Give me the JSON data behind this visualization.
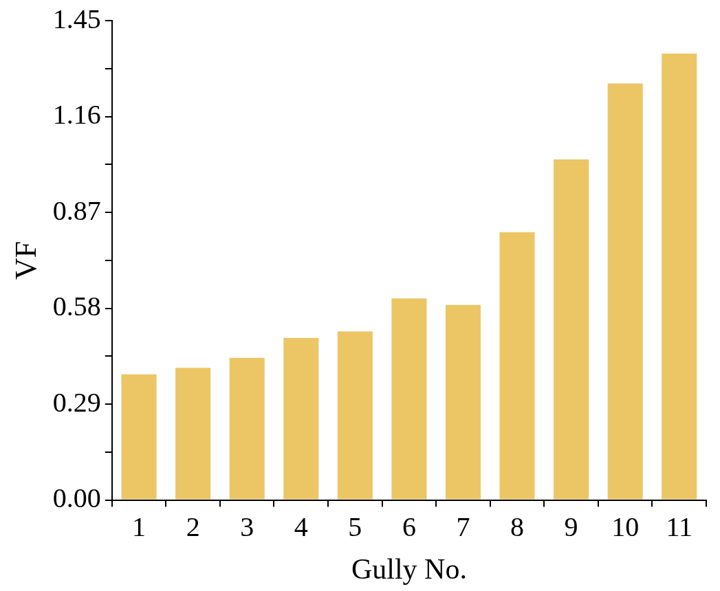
{
  "chart_data": {
    "type": "bar",
    "xlabel": "Gully No.",
    "ylabel": "VF",
    "categories": [
      "1",
      "2",
      "3",
      "4",
      "5",
      "6",
      "7",
      "8",
      "9",
      "10",
      "11"
    ],
    "values": [
      0.38,
      0.4,
      0.43,
      0.49,
      0.51,
      0.61,
      0.59,
      0.81,
      1.03,
      1.26,
      1.35
    ],
    "color": "#ecc565",
    "ylim": [
      0,
      1.45
    ],
    "yticks": [
      {
        "value": 0,
        "label": "0.00"
      },
      {
        "value": 0.145,
        "label": null
      },
      {
        "value": 0.29,
        "label": "0.29"
      },
      {
        "value": 0.435,
        "label": null
      },
      {
        "value": 0.58,
        "label": "0.58"
      },
      {
        "value": 0.725,
        "label": null
      },
      {
        "value": 0.87,
        "label": "0.87"
      },
      {
        "value": 1.015,
        "label": null
      },
      {
        "value": 1.16,
        "label": "1.16"
      },
      {
        "value": 1.305,
        "label": null
      },
      {
        "value": 1.45,
        "label": "1.45"
      }
    ],
    "grid": false
  }
}
